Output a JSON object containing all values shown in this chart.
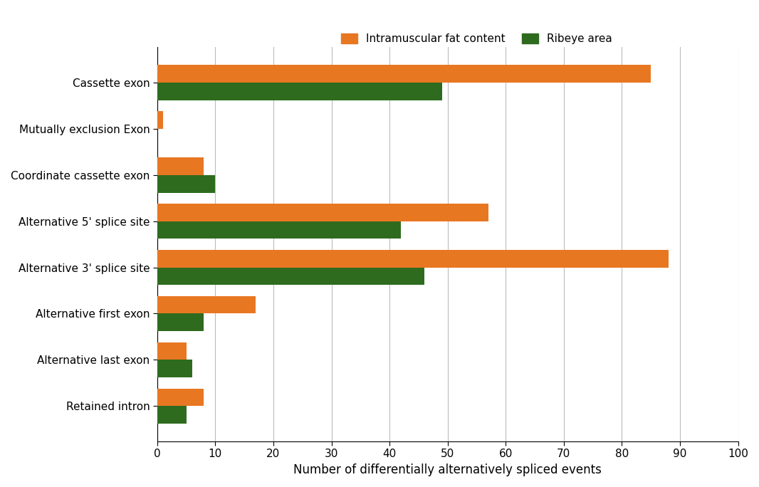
{
  "categories": [
    "Cassette exon",
    "Mutually exclusion Exon",
    "Coordinate cassette exon",
    "Alternative 5' splice site",
    "Alternative 3' splice site",
    "Alternative first exon",
    "Alternative last exon",
    "Retained intron"
  ],
  "intramuscular_fat": [
    85,
    1,
    8,
    57,
    88,
    17,
    5,
    8
  ],
  "ribeye_area": [
    49,
    0,
    10,
    42,
    46,
    8,
    6,
    5
  ],
  "orange_color": "#E87722",
  "green_color": "#2E6B1E",
  "xlabel": "Number of differentially alternatively spliced events",
  "legend_orange": "Intramuscular fat content",
  "legend_green": "Ribeye area",
  "xlim": [
    0,
    100
  ],
  "xticks": [
    0,
    10,
    20,
    30,
    40,
    50,
    60,
    70,
    80,
    90,
    100
  ],
  "bar_height": 0.38,
  "grid_color": "#bbbbbb",
  "background_color": "#ffffff",
  "figsize": [
    10.66,
    6.84
  ],
  "dpi": 100
}
